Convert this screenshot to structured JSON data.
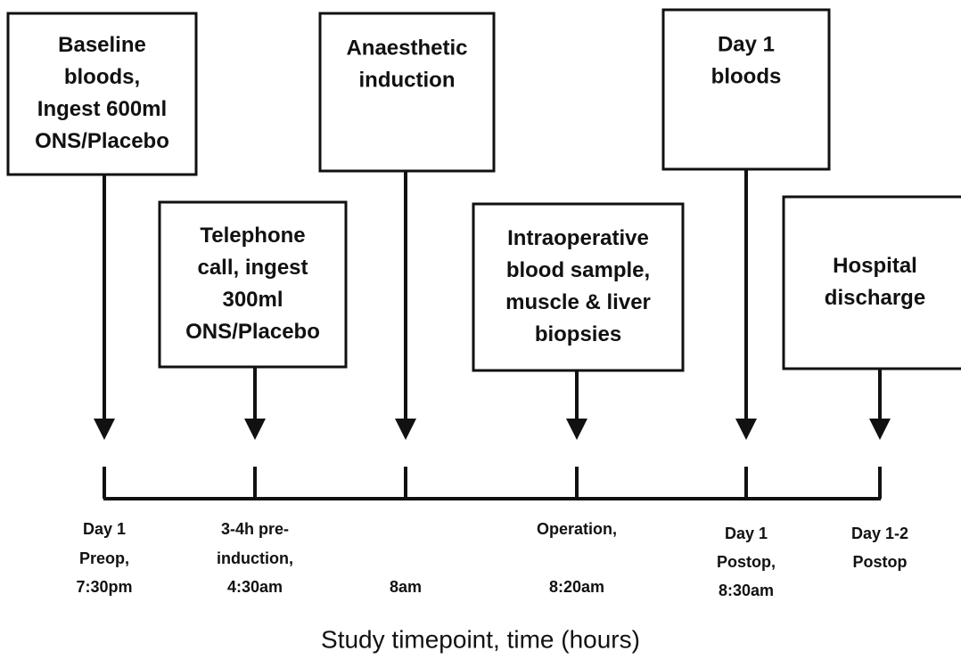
{
  "events": [
    {
      "box_lines": [
        "Baseline",
        "bloods,",
        "Ingest 600ml",
        "ONS/Placebo"
      ],
      "time_lines": [
        "Day 1",
        "Preop,",
        "7:30pm"
      ]
    },
    {
      "box_lines": [
        "Telephone",
        "call, ingest",
        "300ml",
        "ONS/Placebo"
      ],
      "time_lines": [
        "3-4h pre-",
        "induction,",
        "4:30am"
      ]
    },
    {
      "box_lines": [
        "Anaesthetic",
        "induction"
      ],
      "time_lines": [
        "8am"
      ]
    },
    {
      "box_lines": [
        "Intraoperative",
        "blood sample,",
        "muscle & liver",
        "biopsies"
      ],
      "time_lines": [
        "Operation,",
        "8:20am"
      ]
    },
    {
      "box_lines": [
        "Day 1",
        "bloods"
      ],
      "time_lines": [
        "Day 1",
        "Postop,",
        "8:30am"
      ]
    },
    {
      "box_lines": [
        "Hospital",
        "discharge"
      ],
      "time_lines": [
        "Day 1-2",
        "Postop"
      ]
    }
  ],
  "axis_title": "Study timepoint, time (hours)"
}
